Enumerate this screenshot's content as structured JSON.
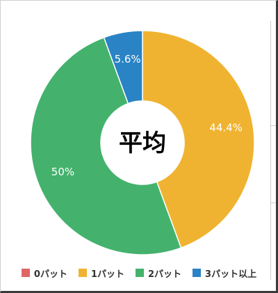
{
  "chart_data": {
    "type": "pie",
    "donut": true,
    "center_label": "平均",
    "series": [
      {
        "name": "0パット",
        "value": 0,
        "label": "",
        "color": "#e06666"
      },
      {
        "name": "1パット",
        "value": 44.4,
        "label": "44.4%",
        "color": "#f0b331"
      },
      {
        "name": "2パット",
        "value": 50,
        "label": "50%",
        "color": "#44b26d"
      },
      {
        "name": "3パット以上",
        "value": 5.6,
        "label": "5.6%",
        "color": "#2a83c4"
      }
    ],
    "legend_position": "bottom"
  }
}
